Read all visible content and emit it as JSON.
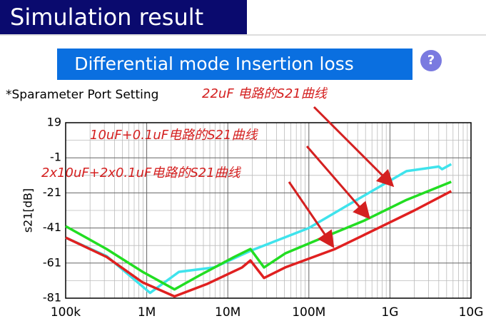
{
  "header": {
    "title": "Simulation result",
    "banner": "Differential mode Insertion loss",
    "subtitle": "*Sparameter Port Setting",
    "help": "?"
  },
  "chart_data": {
    "type": "line",
    "y_label": "s21[dB]",
    "xscale": "log",
    "grid": true,
    "xlim": [
      100000,
      10000000000
    ],
    "xticks": [
      {
        "value": 100000,
        "label": "100k"
      },
      {
        "value": 1000000,
        "label": "1M"
      },
      {
        "value": 10000000,
        "label": "10M"
      },
      {
        "value": 100000000,
        "label": "100M"
      },
      {
        "value": 1000000000,
        "label": "1G"
      },
      {
        "value": 10000000000,
        "label": "10G"
      }
    ],
    "ylim": [
      -81,
      19
    ],
    "yticks": [
      19,
      -1,
      -21,
      -41,
      -61,
      -81
    ],
    "annotations": [
      "22uF 电路的S21曲线",
      "10uF+0.1uF电路的S21曲线",
      "2x10uF+2x0.1uF电路的S21曲线"
    ],
    "series": [
      {
        "color": "#3fe3ec",
        "x": [
          100000,
          320000,
          1100000,
          2500000,
          6800000,
          19000000,
          100000000,
          390000000,
          1600000000,
          4000000000,
          4400000000,
          5700000000
        ],
        "values": [
          -46.5,
          -57,
          -78,
          -66,
          -63.5,
          -54,
          -41,
          -25,
          -8.6,
          -6,
          -7.5,
          -4.6
        ]
      },
      {
        "color": "#22dd22",
        "x": [
          100000,
          320000,
          890000,
          2200000,
          4500000,
          12000000,
          19000000,
          28000000,
          51000000,
          140000000,
          470000000,
          1600000000,
          5700000000
        ],
        "values": [
          -40,
          -53,
          -66,
          -76,
          -68,
          -57.5,
          -53,
          -63.5,
          -55.5,
          -47,
          -37,
          -25,
          -14.7
        ]
      },
      {
        "color": "#e02020",
        "x": [
          100000,
          320000,
          890000,
          2200000,
          5500000,
          15000000,
          19000000,
          28000000,
          51000000,
          210000000,
          720000000,
          2000000000,
          5700000000
        ],
        "values": [
          -46.5,
          -57.5,
          -72,
          -80,
          -73,
          -63.5,
          -59.5,
          -69.5,
          -63.5,
          -53,
          -41,
          -31,
          -20
        ]
      }
    ]
  }
}
